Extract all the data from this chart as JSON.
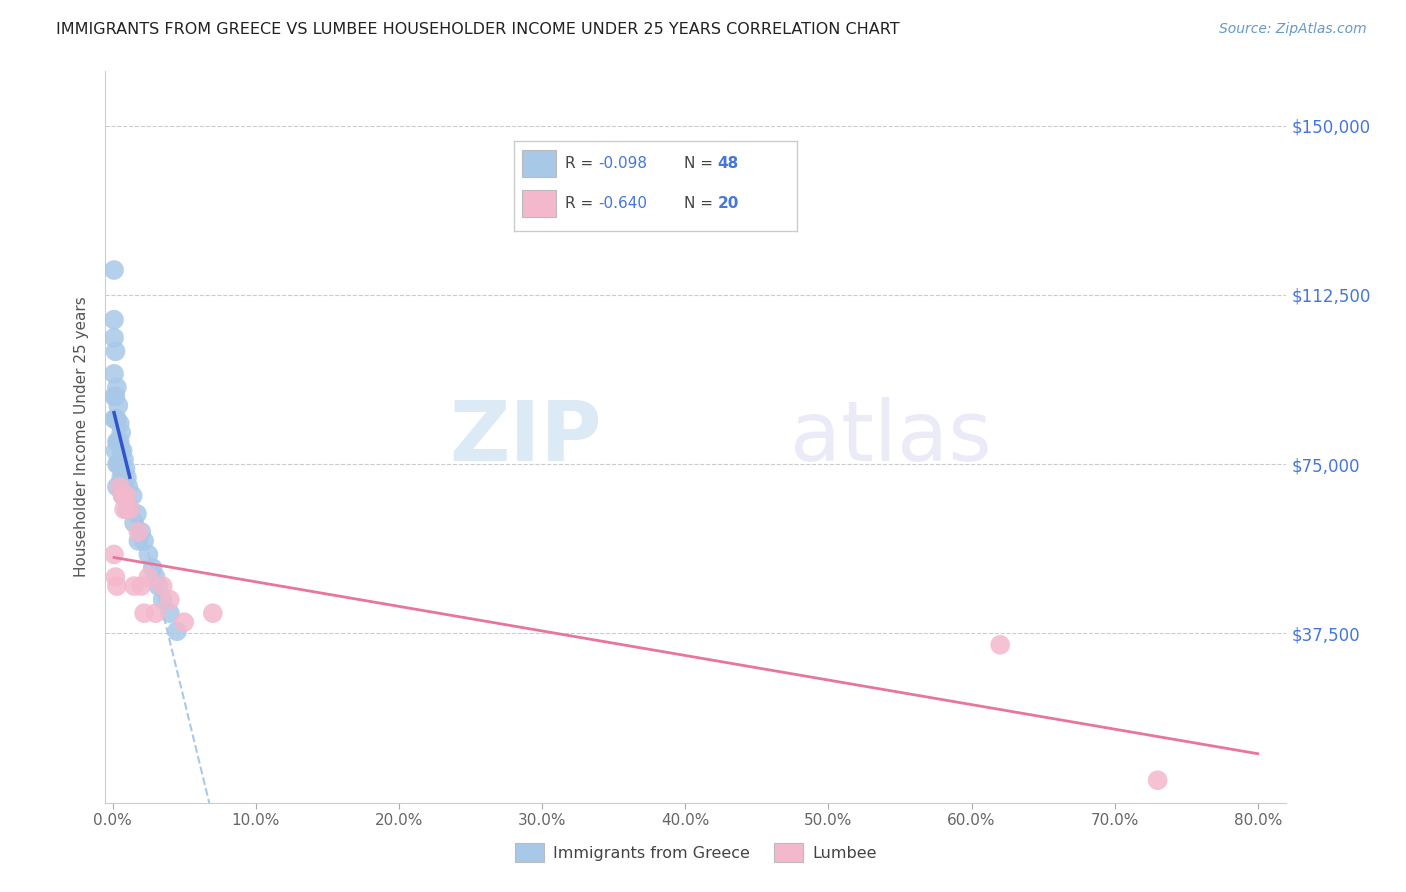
{
  "title": "IMMIGRANTS FROM GREECE VS LUMBEE HOUSEHOLDER INCOME UNDER 25 YEARS CORRELATION CHART",
  "source": "Source: ZipAtlas.com",
  "ylabel": "Householder Income Under 25 years",
  "xticklabels": [
    "0.0%",
    "10.0%",
    "20.0%",
    "30.0%",
    "40.0%",
    "50.0%",
    "60.0%",
    "70.0%",
    "80.0%"
  ],
  "xticks": [
    0.0,
    0.1,
    0.2,
    0.3,
    0.4,
    0.5,
    0.6,
    0.7,
    0.8
  ],
  "ytick_labels": [
    "$37,500",
    "$75,000",
    "$112,500",
    "$150,000"
  ],
  "ytick_values": [
    37500,
    75000,
    112500,
    150000
  ],
  "xlim": [
    -0.005,
    0.82
  ],
  "ylim": [
    0,
    162000
  ],
  "legend_label1": "Immigrants from Greece",
  "legend_label2": "Lumbee",
  "r1": "-0.098",
  "n1": "48",
  "r2": "-0.640",
  "n2": "20",
  "watermark_zip": "ZIP",
  "watermark_atlas": "atlas",
  "background_color": "#ffffff",
  "blue_color": "#a8c8e8",
  "pink_color": "#f4b8cc",
  "blue_line_color": "#3355cc",
  "pink_line_color": "#e8759a",
  "blue_dash_color": "#aac8e8",
  "title_color": "#222222",
  "right_label_color": "#4477dd",
  "source_color": "#6699cc",
  "greece_x": [
    0.001,
    0.001,
    0.001,
    0.001,
    0.001,
    0.001,
    0.002,
    0.002,
    0.002,
    0.002,
    0.003,
    0.003,
    0.003,
    0.003,
    0.003,
    0.004,
    0.004,
    0.004,
    0.005,
    0.005,
    0.005,
    0.005,
    0.006,
    0.006,
    0.006,
    0.007,
    0.007,
    0.007,
    0.008,
    0.008,
    0.009,
    0.01,
    0.01,
    0.011,
    0.012,
    0.014,
    0.015,
    0.017,
    0.018,
    0.02,
    0.022,
    0.025,
    0.028,
    0.03,
    0.032,
    0.035,
    0.04,
    0.045
  ],
  "greece_y": [
    118000,
    107000,
    103000,
    95000,
    90000,
    85000,
    100000,
    90000,
    85000,
    78000,
    92000,
    85000,
    80000,
    75000,
    70000,
    88000,
    80000,
    75000,
    84000,
    80000,
    75000,
    70000,
    82000,
    78000,
    72000,
    78000,
    73000,
    68000,
    76000,
    70000,
    74000,
    72000,
    65000,
    70000,
    65000,
    68000,
    62000,
    64000,
    58000,
    60000,
    58000,
    55000,
    52000,
    50000,
    48000,
    45000,
    42000,
    38000
  ],
  "lumbee_x": [
    0.001,
    0.002,
    0.003,
    0.005,
    0.007,
    0.008,
    0.01,
    0.012,
    0.015,
    0.018,
    0.02,
    0.022,
    0.025,
    0.03,
    0.035,
    0.04,
    0.05,
    0.07,
    0.62,
    0.73
  ],
  "lumbee_y": [
    55000,
    50000,
    48000,
    70000,
    68000,
    65000,
    68000,
    65000,
    48000,
    60000,
    48000,
    42000,
    50000,
    42000,
    48000,
    45000,
    40000,
    42000,
    35000,
    5000
  ],
  "greece_trend_x_start": 0.001,
  "greece_trend_x_solid_end": 0.012,
  "greece_trend_x_dash_end": 0.32,
  "lumbee_trend_x_start": 0.001,
  "lumbee_trend_x_end": 0.8
}
